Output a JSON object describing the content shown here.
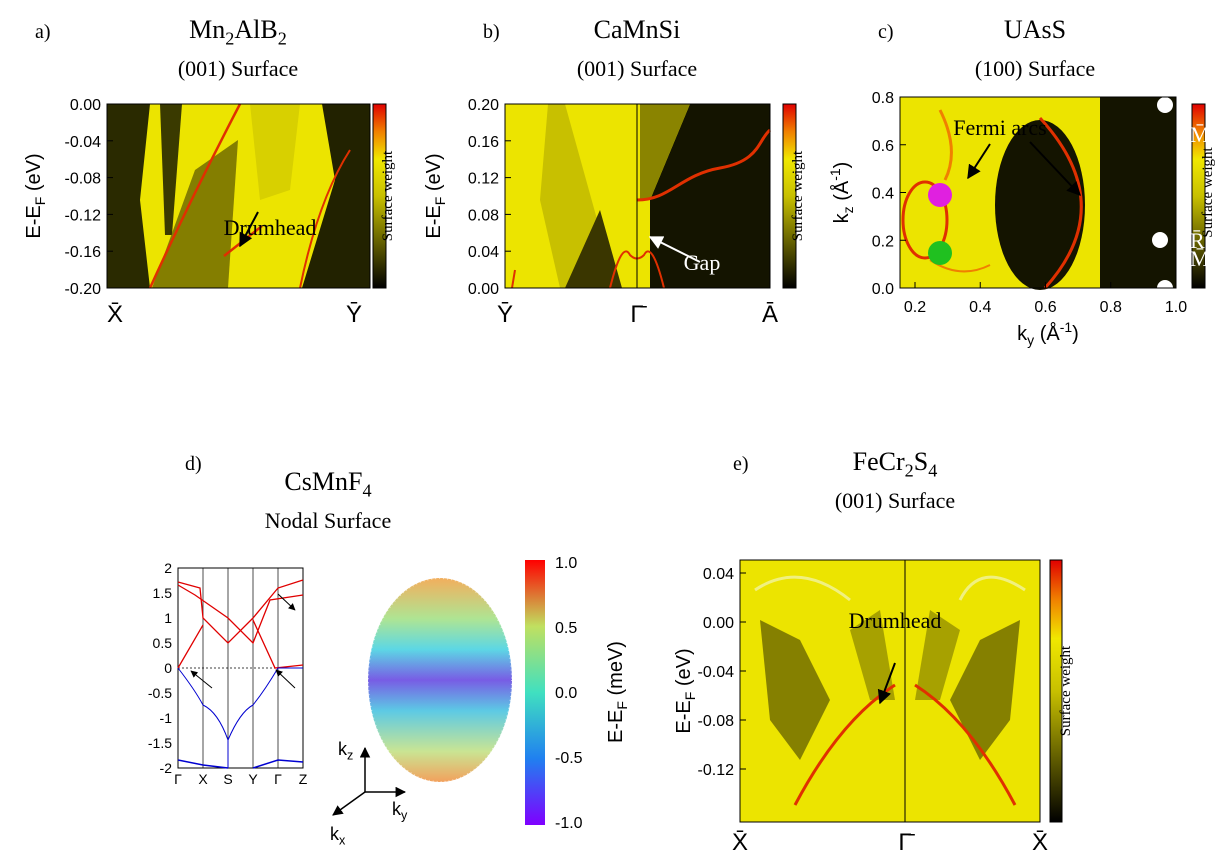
{
  "panels": [
    {
      "label": "a)",
      "title": [
        {
          "t": "Mn"
        },
        {
          "sub": "2"
        },
        {
          "t": "AlB"
        },
        {
          "sub": "2"
        }
      ],
      "subtitle": "(001) Surface",
      "ylabel": [
        {
          "t": "E-E"
        },
        {
          "sub": "F"
        },
        {
          "t": " (eV)"
        }
      ],
      "yticks": [
        "0.00",
        "-0.04",
        "-0.08",
        "-0.12",
        "-0.16",
        "-0.20"
      ],
      "xticks": [
        "X̄",
        "Ȳ"
      ],
      "colorbar_label": "Surface weight",
      "annotations": [
        "Drumhead"
      ]
    },
    {
      "label": "b)",
      "title": [
        {
          "t": "CaMnSi"
        }
      ],
      "subtitle": "(001) Surface",
      "ylabel": [
        {
          "t": "E-E"
        },
        {
          "sub": "F"
        },
        {
          "t": " (eV)"
        }
      ],
      "yticks": [
        "0.20",
        "0.16",
        "0.12",
        "0.08",
        "0.04",
        "0.00"
      ],
      "xticks": [
        "Ȳ",
        "Γ̄",
        "Ā"
      ],
      "colorbar_label": "Surface weight",
      "annotations": [
        "Gap"
      ]
    },
    {
      "label": "c)",
      "title": [
        {
          "t": "UAsS"
        }
      ],
      "subtitle": "(100) Surface",
      "ylabel": [
        {
          "t": "k"
        },
        {
          "sub": "z"
        },
        {
          "t": " (Å"
        },
        {
          "sup": "-1"
        },
        {
          "t": ")"
        }
      ],
      "xlabel": [
        {
          "t": "k"
        },
        {
          "sub": "y"
        },
        {
          "t": " (Å"
        },
        {
          "sup": "-1"
        },
        {
          "t": ")"
        }
      ],
      "yticks": [
        "0.8",
        "0.6",
        "0.4",
        "0.2",
        "0.0"
      ],
      "xticks": [
        "0.2",
        "0.4",
        "0.6",
        "0.8",
        "1.0"
      ],
      "colorbar_label": "Surface weight",
      "annotations": [
        "Fermi arcs",
        "M̄",
        "R̄",
        "M̄"
      ]
    },
    {
      "label": "d)",
      "title": [
        {
          "t": "CsMnF"
        },
        {
          "sub": "4"
        }
      ],
      "subtitle": "Nodal Surface",
      "band_yticks": [
        "2",
        "1.5",
        "1",
        "0.5",
        "0",
        "-0.5",
        "-1",
        "-1.5",
        "-2"
      ],
      "band_xticks": [
        "Γ",
        "X",
        "S",
        "Y",
        "Γ",
        "Z"
      ],
      "colorbar_ticks": [
        "1.0",
        "0.5",
        "0.0",
        "-0.5",
        "-1.0"
      ],
      "colorbar_label": [
        {
          "t": "E-E"
        },
        {
          "sub": "F"
        },
        {
          "t": " (meV)"
        }
      ],
      "axes": [
        [
          {
            "t": "k"
          },
          {
            "sub": "z"
          }
        ],
        [
          {
            "t": "k"
          },
          {
            "sub": "y"
          }
        ],
        [
          {
            "t": "k"
          },
          {
            "sub": "x"
          }
        ]
      ]
    },
    {
      "label": "e)",
      "title": [
        {
          "t": "FeCr"
        },
        {
          "sub": "2"
        },
        {
          "t": "S"
        },
        {
          "sub": "4"
        }
      ],
      "subtitle": "(001) Surface",
      "ylabel": [
        {
          "t": "E-E"
        },
        {
          "sub": "F"
        },
        {
          "t": " (eV)"
        }
      ],
      "yticks": [
        "0.04",
        "0.00",
        "-0.04",
        "-0.08",
        "-0.12"
      ],
      "xticks": [
        "X̄",
        "Γ̄",
        "X̄"
      ],
      "colorbar_label": "Surface weight",
      "annotations": [
        "Drumhead"
      ]
    }
  ]
}
